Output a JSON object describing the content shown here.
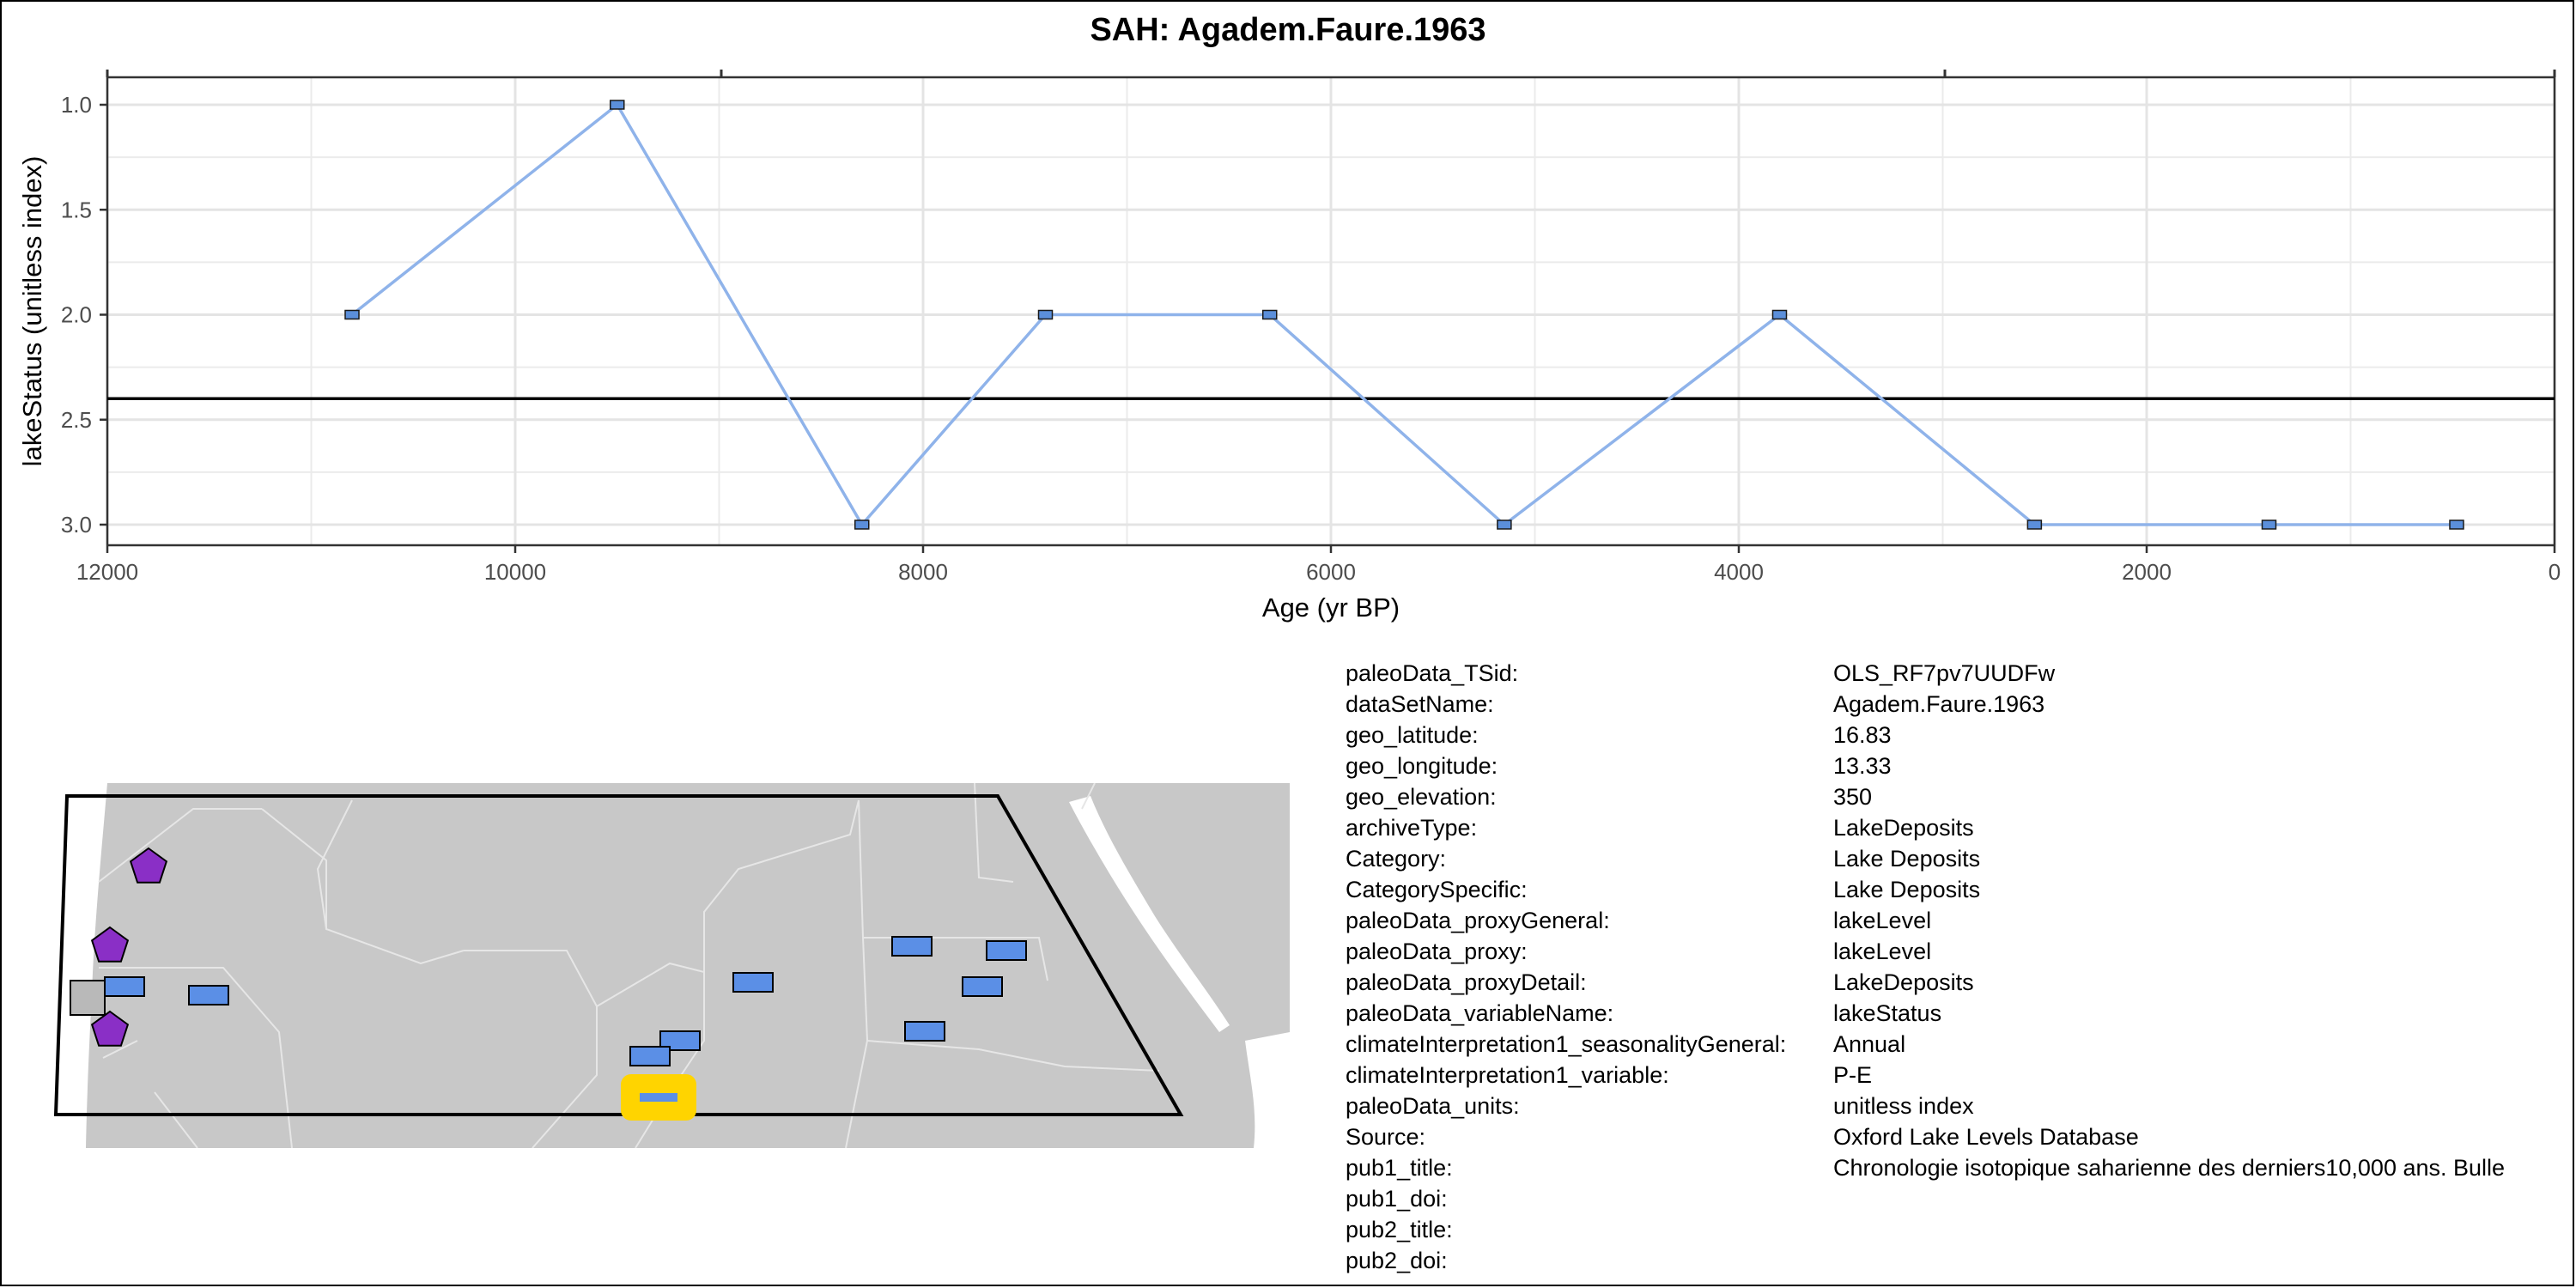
{
  "chart_data": {
    "type": "line",
    "title": "SAH: Agadem.Faure.1963",
    "xlabel": "Age (yr BP)",
    "ylabel": "lakeStatus (unitless index)",
    "x_reversed": true,
    "y_reversed": true,
    "xlim": [
      12000,
      0
    ],
    "ylim": [
      1.0,
      3.0
    ],
    "x_ticks": [
      12000,
      10000,
      8000,
      6000,
      4000,
      2000,
      0
    ],
    "y_ticks": [
      1.0,
      1.5,
      2.0,
      2.5,
      3.0
    ],
    "y_tick_labels": [
      "1.0",
      "1.5",
      "2.0",
      "2.5",
      "3.0"
    ],
    "grid": true,
    "reference_line_y": 2.4,
    "series": [
      {
        "x": [
          10800,
          9500,
          8300,
          7400,
          6300,
          5150,
          3800,
          2550,
          1400,
          480
        ],
        "y": [
          2,
          1,
          3,
          2,
          2,
          3,
          2,
          3,
          3,
          3
        ],
        "color": "#8fb3ea"
      }
    ]
  },
  "colors": {
    "line": "#8fb3ea",
    "marker": "#5b8fdb",
    "grid": "#ebebeb",
    "map_land": "#c8c8c8",
    "map_borders": "#e6e6e6",
    "site_rect": "#5b8fe6",
    "site_pentagon": "#8a2fc6",
    "site_square": "#b9b9b9",
    "highlight": "#ffd400"
  },
  "map": {
    "sites": [
      {
        "shape": "pentagon",
        "color": "#8a2fc6"
      },
      {
        "shape": "pentagon",
        "color": "#8a2fc6"
      },
      {
        "shape": "pentagon",
        "color": "#8a2fc6"
      },
      {
        "shape": "square",
        "color": "#b9b9b9"
      },
      {
        "shape": "rect",
        "color": "#5b8fe6"
      },
      {
        "shape": "rect",
        "color": "#5b8fe6"
      },
      {
        "shape": "rect",
        "color": "#5b8fe6"
      },
      {
        "shape": "rect",
        "color": "#5b8fe6"
      },
      {
        "shape": "rect",
        "color": "#5b8fe6"
      },
      {
        "shape": "rect",
        "color": "#5b8fe6"
      },
      {
        "shape": "rect",
        "color": "#5b8fe6"
      },
      {
        "shape": "rect",
        "color": "#5b8fe6"
      },
      {
        "shape": "rect",
        "color": "#5b8fe6"
      },
      {
        "shape": "rect",
        "color": "#5b8fe6"
      },
      {
        "shape": "highlight",
        "color": "#ffd400"
      }
    ]
  },
  "metadata": [
    {
      "key": "paleoData_TSid:",
      "value": "OLS_RF7pv7UUDFw"
    },
    {
      "key": "dataSetName:",
      "value": "Agadem.Faure.1963"
    },
    {
      "key": "geo_latitude:",
      "value": "16.83"
    },
    {
      "key": "geo_longitude:",
      "value": "13.33"
    },
    {
      "key": "geo_elevation:",
      "value": "350"
    },
    {
      "key": "archiveType:",
      "value": "LakeDeposits"
    },
    {
      "key": "Category:",
      "value": "Lake Deposits"
    },
    {
      "key": "CategorySpecific:",
      "value": "Lake Deposits"
    },
    {
      "key": "paleoData_proxyGeneral:",
      "value": "lakeLevel"
    },
    {
      "key": "paleoData_proxy:",
      "value": "lakeLevel"
    },
    {
      "key": "paleoData_proxyDetail:",
      "value": "LakeDeposits"
    },
    {
      "key": "paleoData_variableName:",
      "value": "lakeStatus"
    },
    {
      "key": "climateInterpretation1_seasonalityGeneral:",
      "value": "Annual"
    },
    {
      "key": "climateInterpretation1_variable:",
      "value": "P-E"
    },
    {
      "key": "paleoData_units:",
      "value": "unitless index"
    },
    {
      "key": "Source:",
      "value": "Oxford Lake Levels Database"
    },
    {
      "key": "pub1_title:",
      "value": "Chronologie isotopique saharienne des derniers10,000 ans. Bulle"
    },
    {
      "key": "pub1_doi:",
      "value": ""
    },
    {
      "key": "pub2_title:",
      "value": ""
    },
    {
      "key": "pub2_doi:",
      "value": ""
    }
  ]
}
